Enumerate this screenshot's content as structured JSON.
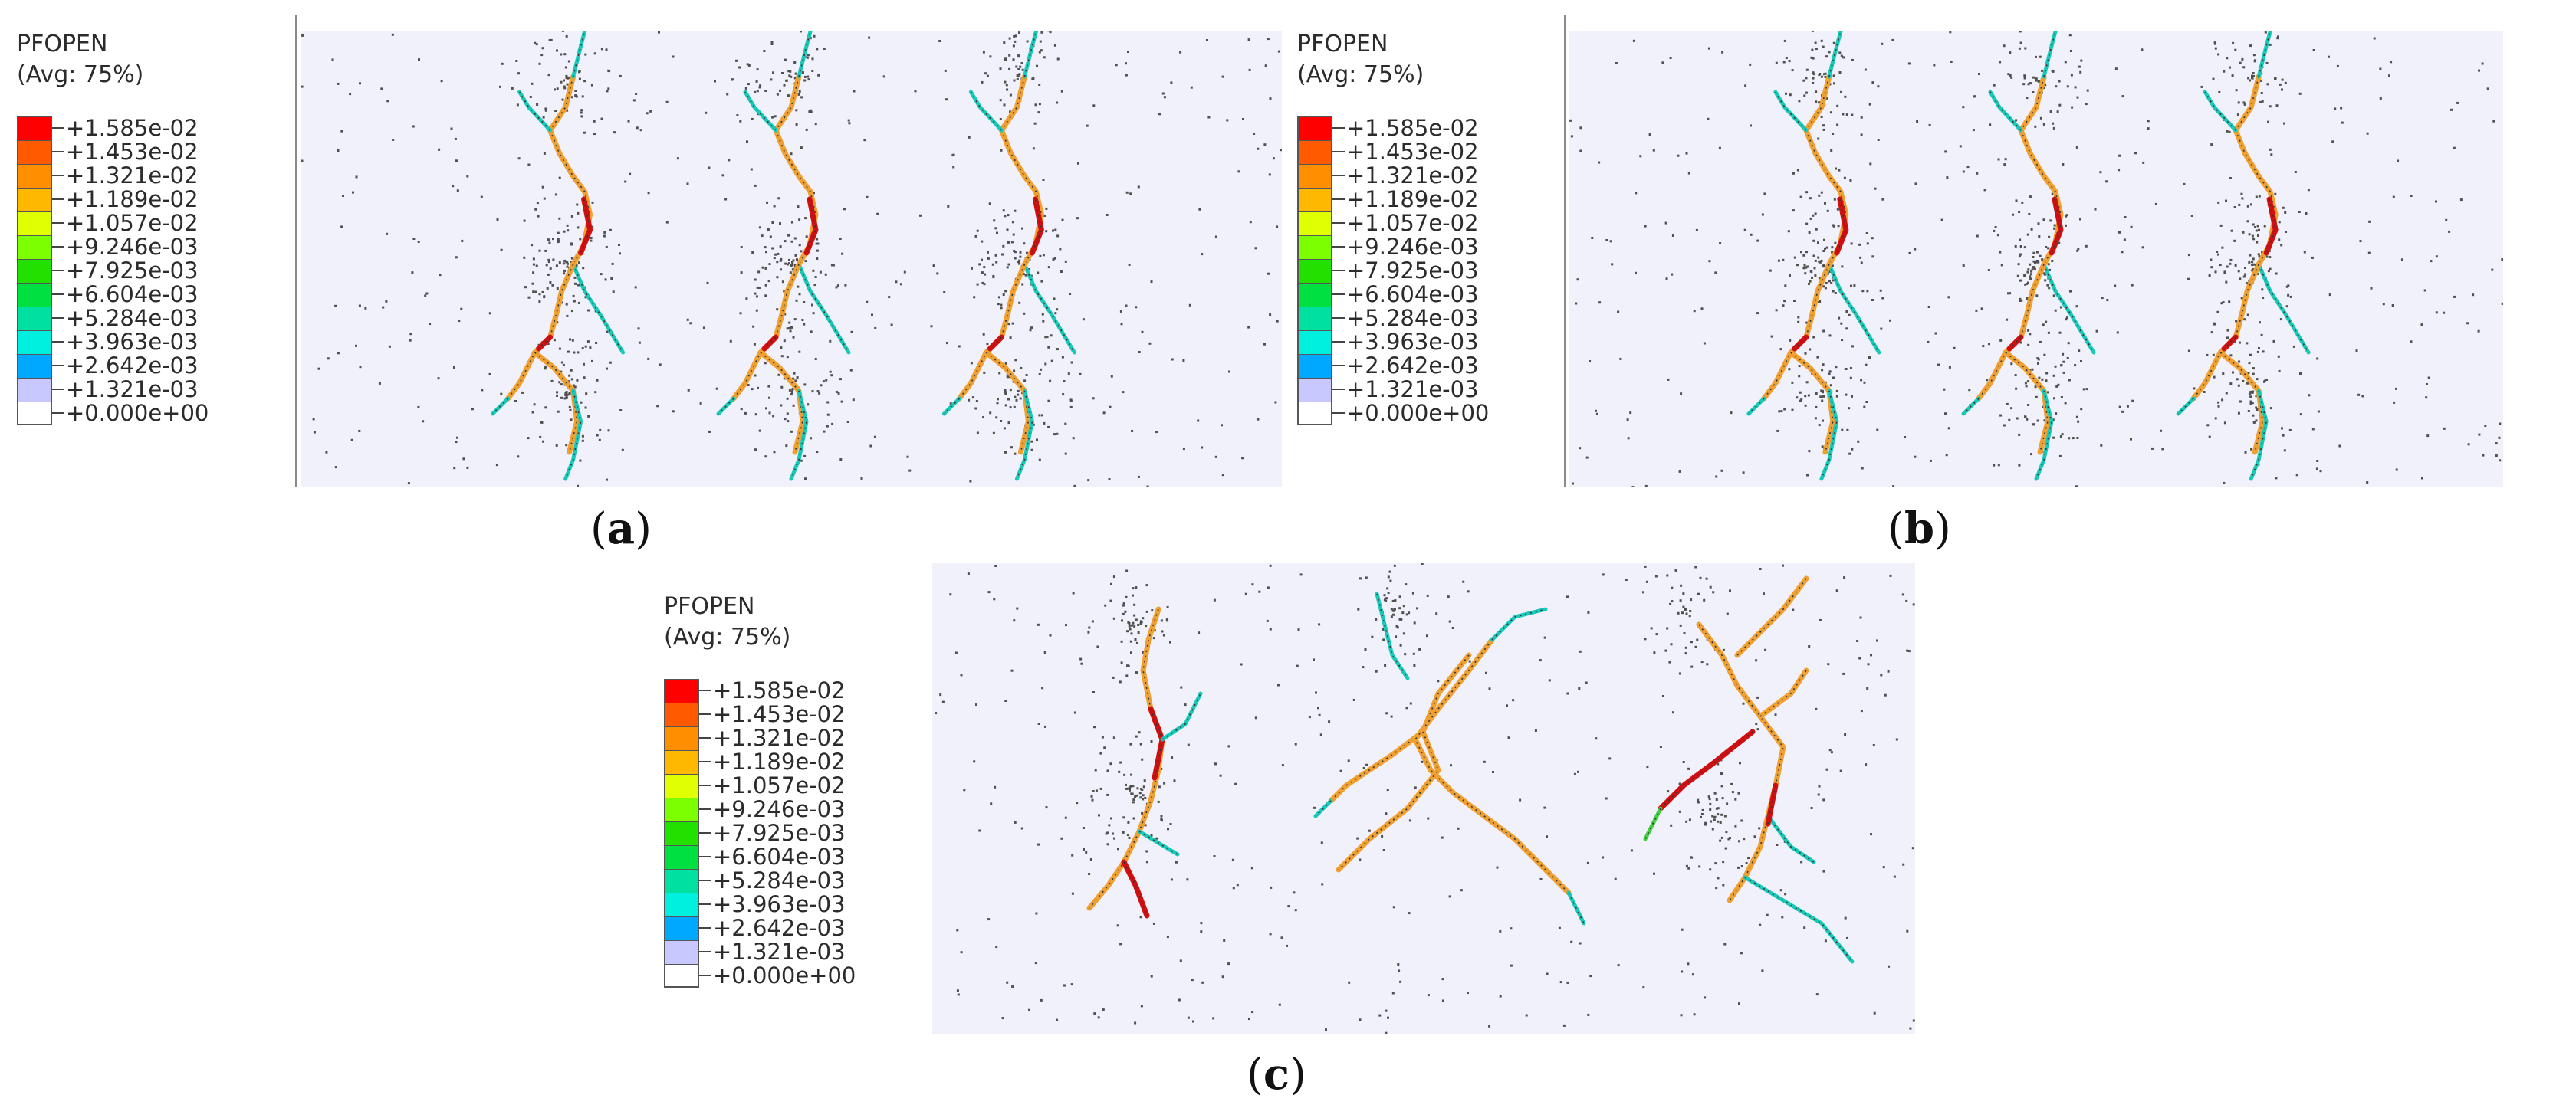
{
  "legend": {
    "title": "PFOPEN",
    "subtitle": "(Avg: 75%)",
    "labels": [
      "+1.585e-02",
      "+1.453e-02",
      "+1.321e-02",
      "+1.189e-02",
      "+1.057e-02",
      "+9.246e-03",
      "+7.925e-03",
      "+6.604e-03",
      "+5.284e-03",
      "+3.963e-03",
      "+2.642e-03",
      "+1.321e-03",
      "+0.000e+00"
    ],
    "colors": [
      "#ff0000",
      "#ff5a00",
      "#ff8e00",
      "#ffb800",
      "#e0ff00",
      "#7cff00",
      "#22e000",
      "#00e040",
      "#00e0a0",
      "#00f0e0",
      "#00a8ff",
      "#c8c8ff",
      "#ffffff"
    ]
  },
  "panels": {
    "a": {
      "caption_open": "(",
      "letter": "a",
      "caption_close": ")"
    },
    "b": {
      "caption_open": "(",
      "letter": "b",
      "caption_close": ")"
    },
    "c": {
      "caption_open": "(",
      "letter": "c",
      "caption_close": ")"
    }
  },
  "colors": {
    "background": "#f1f1fb",
    "crack_orange": "#f0a030",
    "crack_red": "#d01010",
    "crack_cyan": "#18c8b8",
    "crack_green": "#40d040",
    "dots": "#505050"
  }
}
